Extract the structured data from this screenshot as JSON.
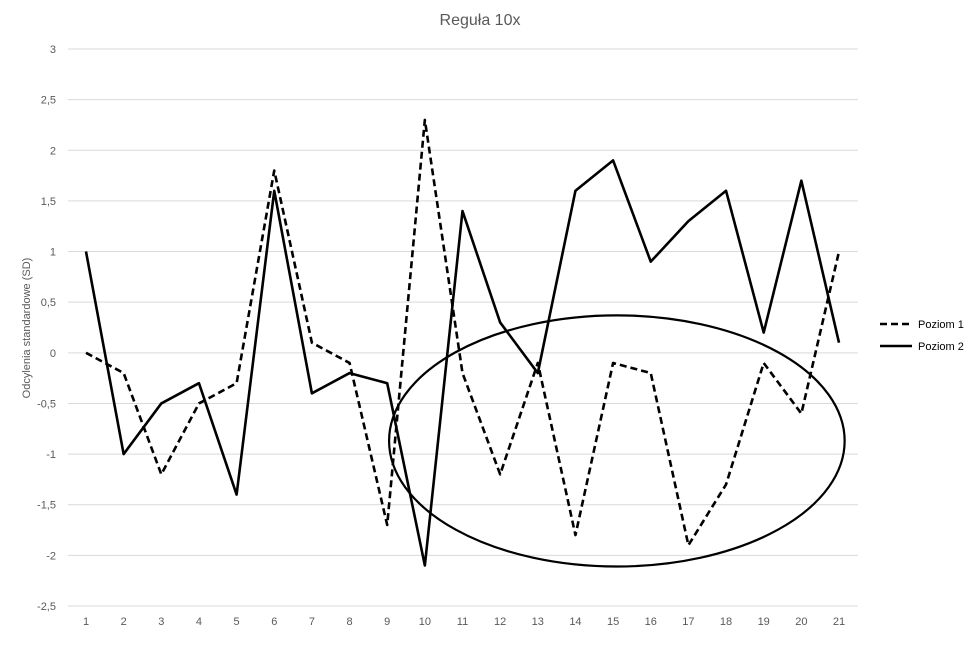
{
  "chart_data": {
    "type": "line",
    "title": "Reguła 10x",
    "xlabel": "",
    "ylabel": "Odcylenia standardowe (SD)",
    "categories": [
      "1",
      "2",
      "3",
      "4",
      "5",
      "6",
      "7",
      "8",
      "9",
      "10",
      "11",
      "12",
      "13",
      "14",
      "15",
      "16",
      "17",
      "18",
      "19",
      "20",
      "21"
    ],
    "y_ticks": [
      "3",
      "2,5",
      "2",
      "1,5",
      "1",
      "0,5",
      "0",
      "-0,5",
      "-1",
      "-1,5",
      "-2",
      "-2,5"
    ],
    "ylim": [
      -2.5,
      3
    ],
    "grid": true,
    "legend_position": "right",
    "series": [
      {
        "name": "Poziom 1",
        "style": "dashed",
        "color": "#000000",
        "values": [
          0,
          -0.2,
          -1.2,
          -0.5,
          -0.3,
          1.8,
          0.1,
          -0.1,
          -1.7,
          2.3,
          -0.2,
          -1.2,
          -0.1,
          -1.8,
          -0.1,
          -0.2,
          -1.9,
          -1.3,
          -0.1,
          -0.6,
          1.0
        ]
      },
      {
        "name": "Poziom 2",
        "style": "solid",
        "color": "#000000",
        "values": [
          1.0,
          -1.0,
          -0.5,
          -0.3,
          -1.4,
          1.6,
          -0.4,
          -0.2,
          -0.3,
          -2.1,
          1.4,
          0.3,
          -0.2,
          1.6,
          1.9,
          0.9,
          1.3,
          1.6,
          0.2,
          1.7,
          0.1
        ]
      }
    ],
    "annotations": [
      {
        "type": "ellipse",
        "x_center": 15.1,
        "y_center": -0.87,
        "x_radius": 6.05,
        "y_radius": 1.24
      }
    ]
  }
}
